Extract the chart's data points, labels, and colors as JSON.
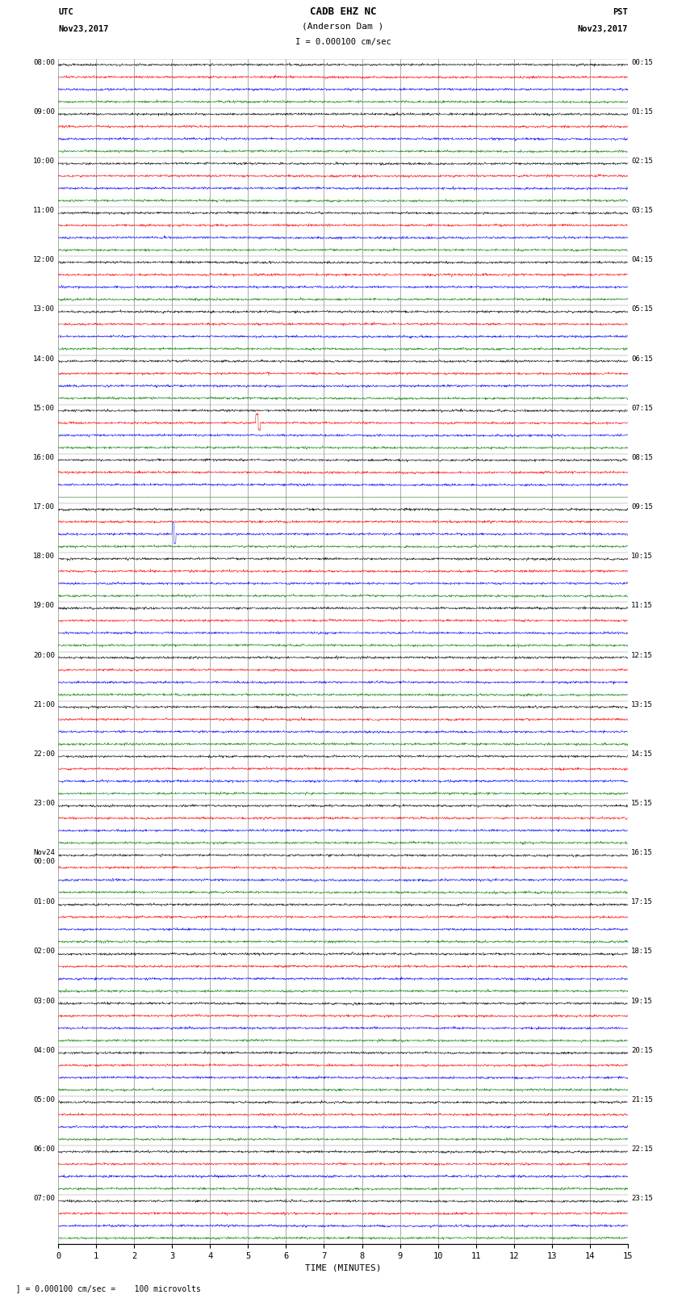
{
  "title_line1": "CADB EHZ NC",
  "title_line2": "(Anderson Dam )",
  "title_scale": "I = 0.000100 cm/sec",
  "utc_label": "UTC",
  "utc_date": "Nov23,2017",
  "pst_label": "PST",
  "pst_date": "Nov23,2017",
  "xlabel": "TIME (MINUTES)",
  "bottom_label": "  ] = 0.000100 cm/sec =    100 microvolts",
  "colors": [
    "black",
    "red",
    "blue",
    "green"
  ],
  "bg_color": "white",
  "grid_color": "#888888",
  "noise_amplitude": 0.12,
  "utc_hour_labels": [
    "08:00",
    "09:00",
    "10:00",
    "11:00",
    "12:00",
    "13:00",
    "14:00",
    "15:00",
    "16:00",
    "17:00",
    "18:00",
    "19:00",
    "20:00",
    "21:00",
    "22:00",
    "23:00",
    "Nov24\n00:00",
    "01:00",
    "02:00",
    "03:00",
    "04:00",
    "05:00",
    "06:00",
    "07:00"
  ],
  "pst_hour_labels": [
    "00:15",
    "01:15",
    "02:15",
    "03:15",
    "04:15",
    "05:15",
    "06:15",
    "07:15",
    "08:15",
    "09:15",
    "10:15",
    "11:15",
    "12:15",
    "13:15",
    "14:15",
    "15:15",
    "16:15",
    "17:15",
    "18:15",
    "19:15",
    "20:15",
    "21:15",
    "22:15",
    "23:15"
  ],
  "n_hours": 24,
  "traces_per_hour": 4,
  "samples_per_trace": 1800,
  "x_min": 0,
  "x_max": 15,
  "fig_width": 8.5,
  "fig_height": 16.13
}
